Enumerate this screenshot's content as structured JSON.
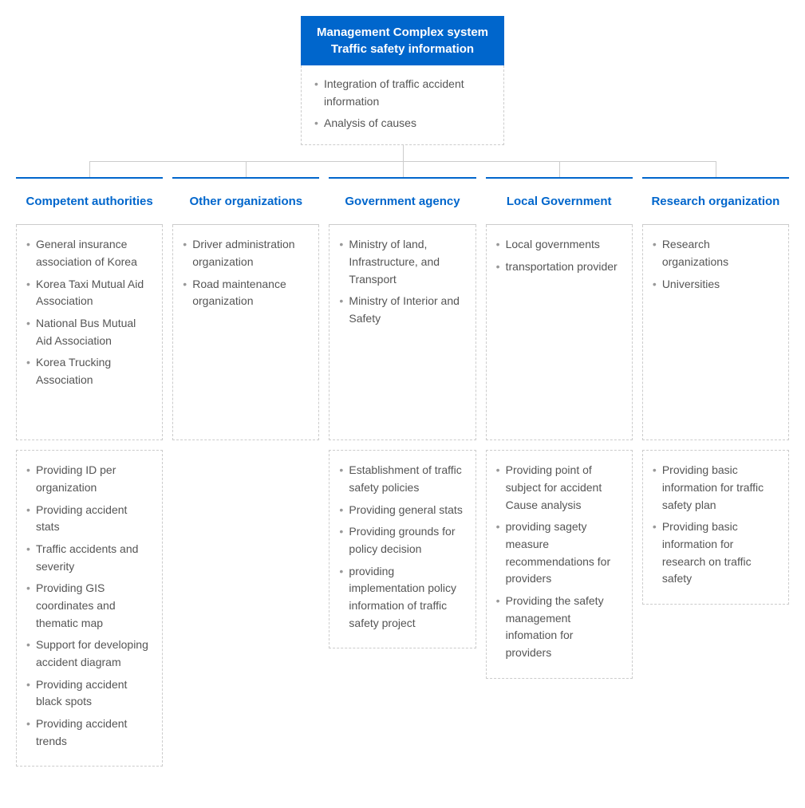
{
  "colors": {
    "primary": "#0066cc",
    "border_dash": "#cccccc",
    "text": "#555555",
    "bullet": "#999999",
    "white": "#ffffff"
  },
  "root": {
    "title_line1": "Management Complex system",
    "title_line2": "Traffic safety information",
    "items": [
      "Integration of traffic accident information",
      "Analysis of causes"
    ]
  },
  "columns": [
    {
      "header": "Competent authorities",
      "primary": [
        "General insurance association of Korea",
        "Korea Taxi Mutual Aid Association",
        "National Bus Mutual Aid Association",
        "Korea Trucking Association"
      ],
      "secondary": [
        "Providing ID per organization",
        "Providing accident stats",
        "Traffic accidents and severity",
        "Providing GIS coordinates and thematic map",
        "Support for developing accident diagram",
        "Providing accident black spots",
        "Providing accident trends"
      ]
    },
    {
      "header": "Other organizations",
      "primary": [
        "Driver administration organization",
        "Road maintenance organization"
      ],
      "secondary": []
    },
    {
      "header": "Government agency",
      "primary": [
        "Ministry of land, Infrastructure, and Transport",
        "Ministry of Interior and Safety"
      ],
      "secondary": [
        "Establishment of traffic safety policies",
        "Providing general stats",
        "Providing grounds for policy decision",
        "providing implementation policy information of traffic safety project"
      ]
    },
    {
      "header": "Local Government",
      "primary": [
        "Local governments",
        "transportation provider"
      ],
      "secondary": [
        "Providing point of subject for accident Cause analysis",
        "providing sagety measure recommendations for providers",
        "Providing the safety management infomation for providers"
      ]
    },
    {
      "header": "Research organization",
      "primary": [
        "Research organizations",
        "Universities"
      ],
      "secondary": [
        "Providing basic information for traffic safety plan",
        "Providing basic information for research on traffic safety"
      ]
    }
  ],
  "layout": {
    "col_count": 5,
    "primary_min_height": 270
  }
}
